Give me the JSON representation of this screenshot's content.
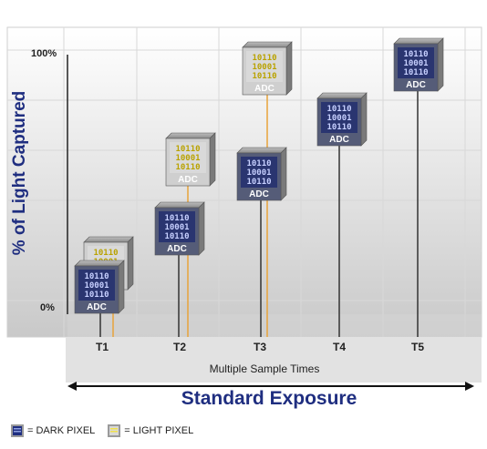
{
  "diagram": {
    "y_axis_label": "% of Light Captured",
    "y_ticks": [
      "100%",
      "0%"
    ],
    "time_labels": [
      "T1",
      "T2",
      "T3",
      "T4",
      "T5"
    ],
    "x_axis_label": "Multiple Sample Times",
    "exposure_label": "Standard Exposure",
    "chip_bits": [
      "10110",
      "10001",
      "10110"
    ],
    "chip_unit_label": "ADC",
    "legend": {
      "dark_label": "= DARK PIXEL",
      "light_label": "= LIGHT PIXEL"
    },
    "colors": {
      "dark_pixel_text": "#1f2e80",
      "light_pixel_text": "#f2e24a",
      "accent": "#1f2e80",
      "light_line": "#e8a33a"
    }
  }
}
